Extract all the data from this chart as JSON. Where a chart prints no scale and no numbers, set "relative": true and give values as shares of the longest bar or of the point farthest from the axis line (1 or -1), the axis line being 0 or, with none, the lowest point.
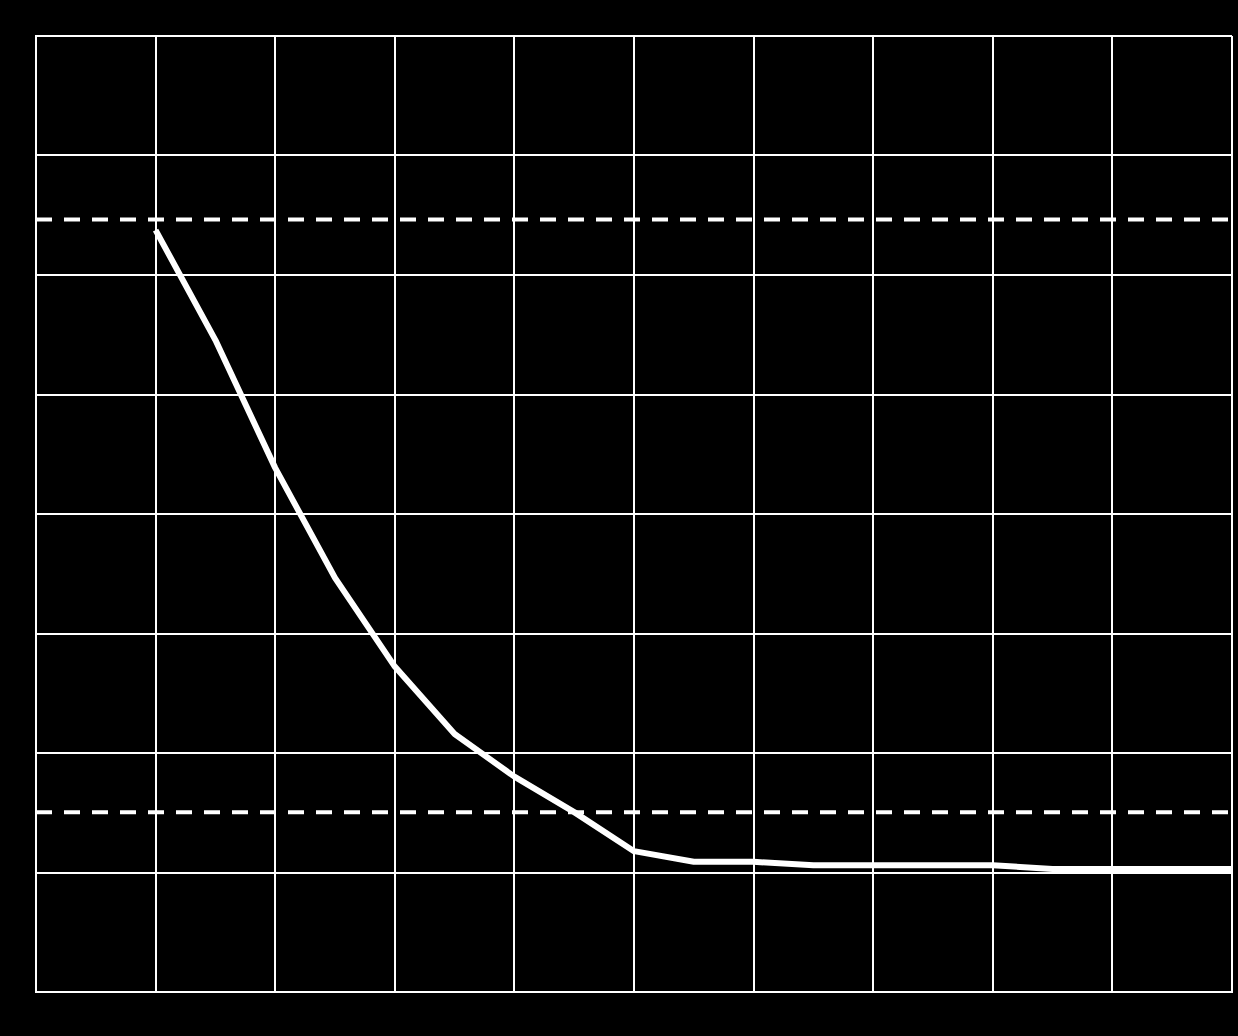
{
  "chart_data": {
    "type": "line",
    "relative": true,
    "grid": true,
    "marker": "none",
    "line_style": "solid",
    "categories": [
      null,
      null,
      null,
      null,
      null,
      null,
      null,
      null,
      null,
      null,
      null,
      null,
      null,
      null,
      null,
      null,
      null,
      null,
      null,
      null,
      null
    ],
    "series": [
      {
        "color": "#ffffff",
        "values": [
          null,
          null,
          0.8,
          0.49,
          0.13,
          -0.18,
          -0.43,
          -0.62,
          -0.74,
          -0.84,
          -0.95,
          -0.98,
          -0.98,
          -0.99,
          -0.99,
          -0.99,
          -0.99,
          -1,
          -1,
          -1,
          -1
        ]
      }
    ],
    "ref_lines": [
      {
        "axis": "y",
        "value": 0.83,
        "color": "#ffffff",
        "line_style": "dashed"
      },
      {
        "axis": "y",
        "value": -0.84,
        "color": "#ffffff",
        "line_style": "dashed"
      }
    ]
  }
}
